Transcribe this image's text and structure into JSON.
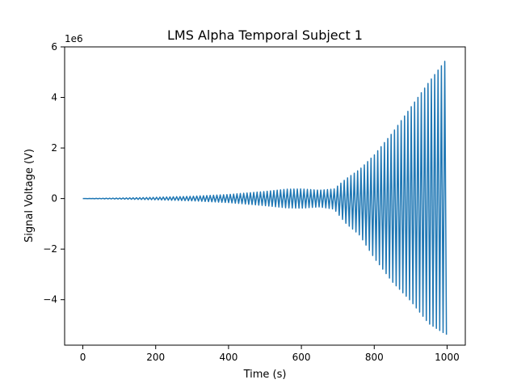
{
  "chart_data": {
    "type": "line",
    "title": "LMS Alpha Temporal Subject 1",
    "xlabel": "Time (s)",
    "ylabel": "Signal Voltage (V)",
    "y_offset_label": "1e6",
    "xlim": [
      -50,
      1050
    ],
    "ylim": [
      -5.8,
      6.0
    ],
    "y_scale_multiplier": 1000000,
    "x_ticks": [
      0,
      200,
      400,
      600,
      800,
      1000
    ],
    "x_tick_labels": [
      "0",
      "200",
      "400",
      "600",
      "800",
      "1000"
    ],
    "y_ticks": [
      -4,
      -2,
      0,
      2,
      4,
      6
    ],
    "y_tick_labels": [
      "−4",
      "−2",
      "0",
      "2",
      "4",
      "6"
    ],
    "grid": false,
    "series": [
      {
        "color": "#1f77b4",
        "x_start": 0,
        "x_end": 1000,
        "oscillation_period_s": 9.2,
        "envelope": {
          "x": [
            0,
            100,
            200,
            300,
            400,
            500,
            560,
            600,
            650,
            690,
            720,
            760,
            800,
            850,
            900,
            950,
            1000
          ],
          "upper": [
            0.0,
            0.02,
            0.05,
            0.09,
            0.16,
            0.28,
            0.37,
            0.38,
            0.33,
            0.38,
            0.75,
            1.15,
            1.72,
            2.6,
            3.6,
            4.6,
            5.55
          ],
          "lower": [
            0.0,
            -0.02,
            -0.05,
            -0.09,
            -0.16,
            -0.28,
            -0.37,
            -0.38,
            -0.33,
            -0.42,
            -0.95,
            -1.45,
            -2.35,
            -3.3,
            -4.05,
            -4.95,
            -5.4
          ]
        }
      }
    ]
  }
}
